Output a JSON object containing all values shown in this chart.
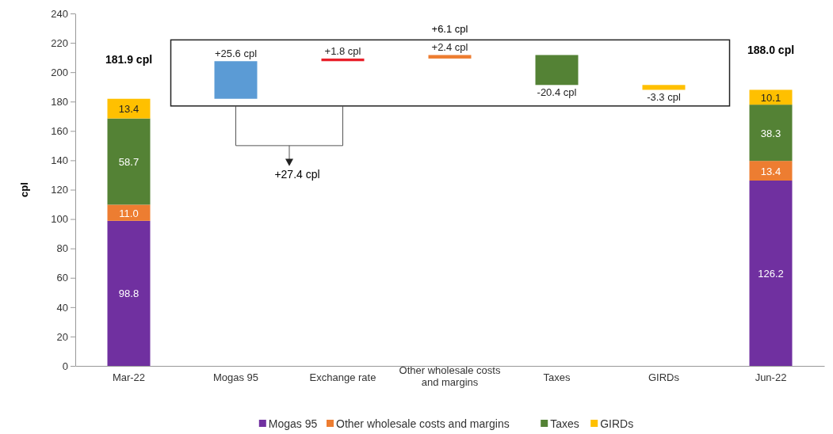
{
  "chart_data": {
    "type": "bar",
    "stacked": true,
    "ylabel": "cpl",
    "categories": [
      "Mar-22",
      "Mogas 95",
      "Exchange rate",
      "Other wholesale costs and margins",
      "Taxes",
      "GIRDs",
      "Jun-22"
    ],
    "ylim": [
      0,
      240
    ],
    "yticks": [
      0,
      20,
      40,
      60,
      80,
      100,
      120,
      140,
      160,
      180,
      200,
      220,
      240
    ],
    "legend": "bottom",
    "series": [
      {
        "name": "Mogas 95",
        "color": "#7030a0",
        "values": [
          98.8,
          null,
          null,
          null,
          null,
          null,
          126.2
        ],
        "value_labels": [
          "98.8",
          null,
          null,
          null,
          null,
          null,
          "126.2"
        ]
      },
      {
        "name": "Other wholesale costs and margins",
        "color": "#ed7d31",
        "values": [
          11.0,
          null,
          null,
          null,
          null,
          null,
          13.4
        ],
        "value_labels": [
          "11.0",
          null,
          null,
          null,
          null,
          null,
          "13.4"
        ]
      },
      {
        "name": "Taxes",
        "color": "#548235",
        "values": [
          58.7,
          null,
          null,
          null,
          null,
          null,
          38.3
        ],
        "value_labels": [
          "58.7",
          null,
          null,
          null,
          null,
          null,
          "38.3"
        ]
      },
      {
        "name": "GIRDs",
        "color": "#ffc000",
        "values": [
          13.4,
          null,
          null,
          null,
          null,
          null,
          10.1
        ],
        "value_labels": [
          "13.4",
          null,
          null,
          null,
          null,
          null,
          "10.1"
        ]
      },
      {
        "values": [
          null,
          25.6,
          1.8,
          2.4,
          -20.4,
          -3.3,
          null
        ],
        "base": [
          null,
          181.9,
          207.5,
          209.3,
          211.7,
          191.3,
          null
        ],
        "colors": [
          null,
          "#5b9bd5",
          "#e8202a",
          "#ed7d31",
          "#548235",
          "#ffc000",
          null
        ],
        "value_labels": [
          null,
          "+25.6 cpl",
          "+1.8 cpl",
          "+2.4 cpl",
          "-20.4 cpl",
          "-3.3 cpl",
          null
        ]
      }
    ],
    "totals": [
      "181.9 cpl",
      null,
      null,
      null,
      null,
      null,
      "188.0 cpl"
    ],
    "annotations": [
      "+6.1 cpl",
      "+27.4 cpl"
    ]
  }
}
